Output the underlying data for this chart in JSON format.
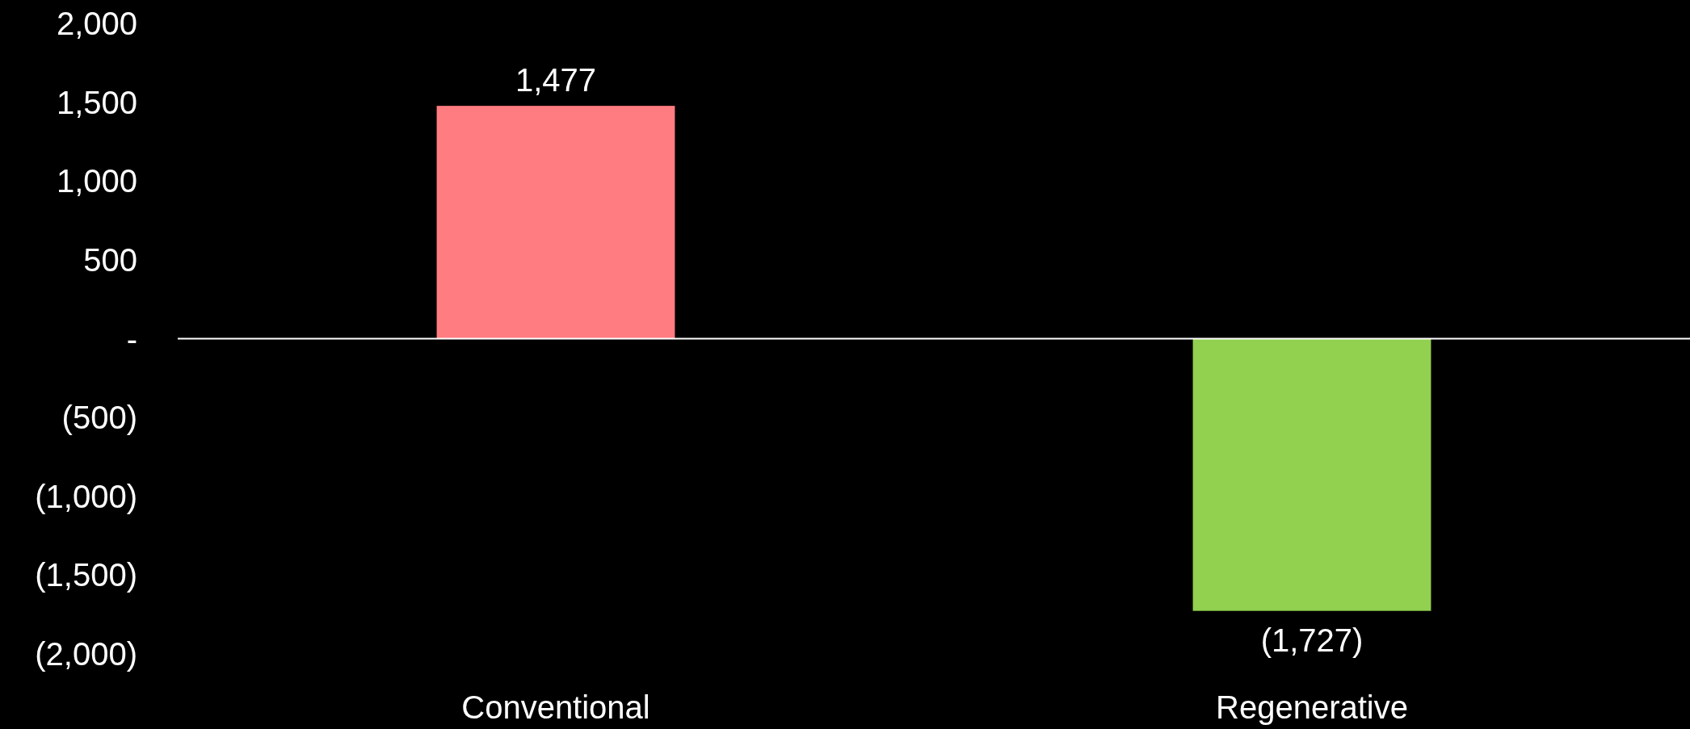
{
  "chart_data": {
    "type": "bar",
    "categories": [
      "Conventional",
      "Regenerative"
    ],
    "values": [
      1477,
      -1727
    ],
    "colors": [
      "#ff7c80",
      "#92d050"
    ],
    "value_labels": [
      "1,477",
      "(1,727)"
    ],
    "ylim": [
      -2000,
      2000
    ],
    "yticks": [
      {
        "value": 2000,
        "label": "2,000"
      },
      {
        "value": 1500,
        "label": "1,500"
      },
      {
        "value": 1000,
        "label": "1,000"
      },
      {
        "value": 500,
        "label": "500"
      },
      {
        "value": 0,
        "label": "-"
      },
      {
        "value": -500,
        "label": "(500)"
      },
      {
        "value": -1000,
        "label": "(1,000)"
      },
      {
        "value": -1500,
        "label": "(1,500)"
      },
      {
        "value": -2000,
        "label": "(2,000)"
      }
    ]
  }
}
